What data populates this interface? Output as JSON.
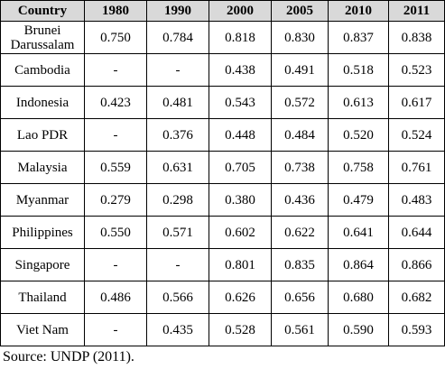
{
  "table": {
    "headers": [
      "Country",
      "1980",
      "1990",
      "2000",
      "2005",
      "2010",
      "2011"
    ],
    "rows": [
      {
        "country": "Brunei Darussalam",
        "values": [
          "0.750",
          "0.784",
          "0.818",
          "0.830",
          "0.837",
          "0.838"
        ]
      },
      {
        "country": "Cambodia",
        "values": [
          "-",
          "-",
          "0.438",
          "0.491",
          "0.518",
          "0.523"
        ]
      },
      {
        "country": "Indonesia",
        "values": [
          "0.423",
          "0.481",
          "0.543",
          "0.572",
          "0.613",
          "0.617"
        ]
      },
      {
        "country": "Lao PDR",
        "values": [
          "-",
          "0.376",
          "0.448",
          "0.484",
          "0.520",
          "0.524"
        ]
      },
      {
        "country": "Malaysia",
        "values": [
          "0.559",
          "0.631",
          "0.705",
          "0.738",
          "0.758",
          "0.761"
        ]
      },
      {
        "country": "Myanmar",
        "values": [
          "0.279",
          "0.298",
          "0.380",
          "0.436",
          "0.479",
          "0.483"
        ]
      },
      {
        "country": "Philippines",
        "values": [
          "0.550",
          "0.571",
          "0.602",
          "0.622",
          "0.641",
          "0.644"
        ]
      },
      {
        "country": "Singapore",
        "values": [
          "-",
          "-",
          "0.801",
          "0.835",
          "0.864",
          "0.866"
        ]
      },
      {
        "country": "Thailand",
        "values": [
          "0.486",
          "0.566",
          "0.626",
          "0.656",
          "0.680",
          "0.682"
        ]
      },
      {
        "country": "Viet Nam",
        "values": [
          "-",
          "0.435",
          "0.528",
          "0.561",
          "0.590",
          "0.593"
        ]
      }
    ]
  },
  "source": "Source: UNDP (2011)."
}
